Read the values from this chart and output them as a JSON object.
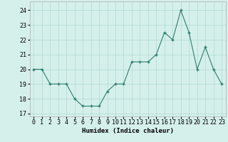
{
  "x": [
    0,
    1,
    2,
    3,
    4,
    5,
    6,
    7,
    8,
    9,
    10,
    11,
    12,
    13,
    14,
    15,
    16,
    17,
    18,
    19,
    20,
    21,
    22,
    23
  ],
  "y": [
    20.0,
    20.0,
    19.0,
    19.0,
    19.0,
    18.0,
    17.5,
    17.5,
    17.5,
    18.5,
    19.0,
    19.0,
    20.5,
    20.5,
    20.5,
    21.0,
    22.5,
    22.0,
    24.0,
    22.5,
    20.0,
    21.5,
    20.0,
    19.0
  ],
  "line_color": "#2d7d6e",
  "marker_color": "#2d7d6e",
  "bg_color": "#d5f0eb",
  "grid_color": "#b0d8d0",
  "xlabel": "Humidex (Indice chaleur)",
  "ylim": [
    16.8,
    24.6
  ],
  "yticks": [
    17,
    18,
    19,
    20,
    21,
    22,
    23,
    24
  ],
  "xlim": [
    -0.5,
    23.5
  ],
  "xticks": [
    0,
    1,
    2,
    3,
    4,
    5,
    6,
    7,
    8,
    9,
    10,
    11,
    12,
    13,
    14,
    15,
    16,
    17,
    18,
    19,
    20,
    21,
    22,
    23
  ],
  "xlabel_fontsize": 6.5,
  "tick_fontsize": 6.0
}
